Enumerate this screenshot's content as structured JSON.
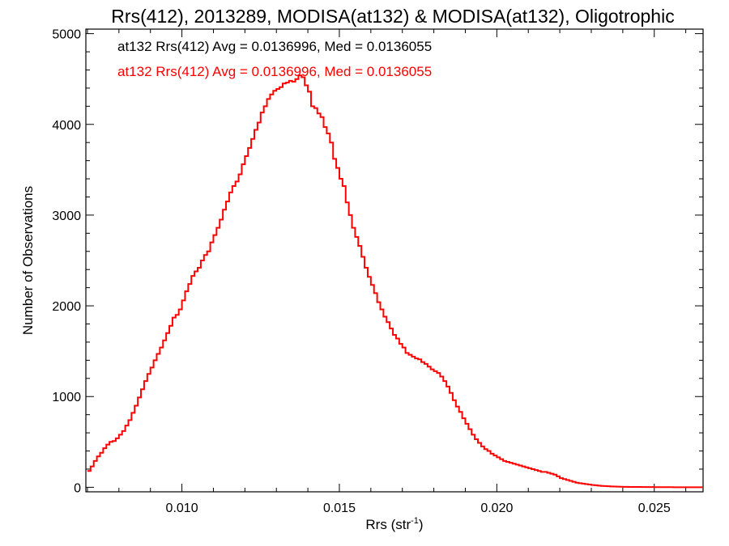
{
  "chart_data": {
    "type": "line",
    "style": "histogram-step",
    "title": "Rrs(412), 2013289, MODISA(at132) & MODISA(at132), Oligotrophic",
    "xlabel_main": "Rrs (str",
    "xlabel_exp": "-1",
    "xlabel_close": ")",
    "ylabel": "Number of Observations",
    "xlim": [
      0.00695,
      0.02655
    ],
    "ylim": [
      -50,
      5050
    ],
    "x_ticks": [
      0.01,
      0.015,
      0.02,
      0.025
    ],
    "x_tick_labels": [
      "0.010",
      "0.015",
      "0.020",
      "0.025"
    ],
    "y_ticks": [
      0,
      1000,
      2000,
      3000,
      4000,
      5000
    ],
    "y_tick_labels": [
      "0",
      "1000",
      "2000",
      "3000",
      "4000",
      "5000"
    ],
    "legend": [
      {
        "text": "at132 Rrs(412) Avg = 0.0136996, Med = 0.0136055",
        "color": "#000000"
      },
      {
        "text": "at132 Rrs(412) Avg = 0.0136996, Med = 0.0136055",
        "color": "#ff0000"
      }
    ],
    "series": [
      {
        "name": "at132",
        "color": "#ff0000",
        "points": [
          [
            0.007,
            180
          ],
          [
            0.0071,
            230
          ],
          [
            0.0072,
            290
          ],
          [
            0.0073,
            340
          ],
          [
            0.0074,
            380
          ],
          [
            0.0075,
            430
          ],
          [
            0.0076,
            470
          ],
          [
            0.0077,
            500
          ],
          [
            0.0078,
            510
          ],
          [
            0.0079,
            540
          ],
          [
            0.008,
            580
          ],
          [
            0.0081,
            620
          ],
          [
            0.0082,
            680
          ],
          [
            0.0083,
            740
          ],
          [
            0.0084,
            820
          ],
          [
            0.0085,
            900
          ],
          [
            0.0086,
            990
          ],
          [
            0.0087,
            1080
          ],
          [
            0.0088,
            1170
          ],
          [
            0.0089,
            1250
          ],
          [
            0.009,
            1320
          ],
          [
            0.0091,
            1400
          ],
          [
            0.0092,
            1470
          ],
          [
            0.0093,
            1540
          ],
          [
            0.0094,
            1620
          ],
          [
            0.0095,
            1700
          ],
          [
            0.0096,
            1780
          ],
          [
            0.0097,
            1870
          ],
          [
            0.0098,
            1900
          ],
          [
            0.0099,
            1960
          ],
          [
            0.01,
            2060
          ],
          [
            0.0101,
            2160
          ],
          [
            0.0102,
            2240
          ],
          [
            0.0103,
            2330
          ],
          [
            0.0104,
            2380
          ],
          [
            0.0105,
            2420
          ],
          [
            0.0106,
            2500
          ],
          [
            0.0107,
            2560
          ],
          [
            0.0108,
            2600
          ],
          [
            0.0109,
            2700
          ],
          [
            0.011,
            2780
          ],
          [
            0.0111,
            2860
          ],
          [
            0.0112,
            2950
          ],
          [
            0.0113,
            3060
          ],
          [
            0.0114,
            3150
          ],
          [
            0.0115,
            3250
          ],
          [
            0.0116,
            3320
          ],
          [
            0.0117,
            3370
          ],
          [
            0.0118,
            3450
          ],
          [
            0.0119,
            3560
          ],
          [
            0.012,
            3650
          ],
          [
            0.0121,
            3740
          ],
          [
            0.0122,
            3840
          ],
          [
            0.0123,
            3940
          ],
          [
            0.0124,
            4020
          ],
          [
            0.0125,
            4130
          ],
          [
            0.0126,
            4200
          ],
          [
            0.0127,
            4280
          ],
          [
            0.0128,
            4330
          ],
          [
            0.0129,
            4370
          ],
          [
            0.013,
            4390
          ],
          [
            0.0131,
            4410
          ],
          [
            0.0132,
            4450
          ],
          [
            0.0133,
            4460
          ],
          [
            0.0134,
            4480
          ],
          [
            0.0135,
            4470
          ],
          [
            0.0136,
            4500
          ],
          [
            0.0137,
            4540
          ],
          [
            0.0138,
            4520
          ],
          [
            0.0139,
            4430
          ],
          [
            0.014,
            4360
          ],
          [
            0.0141,
            4200
          ],
          [
            0.0142,
            4180
          ],
          [
            0.0143,
            4120
          ],
          [
            0.0144,
            4080
          ],
          [
            0.0145,
            3970
          ],
          [
            0.0146,
            3900
          ],
          [
            0.0147,
            3800
          ],
          [
            0.0148,
            3620
          ],
          [
            0.0149,
            3520
          ],
          [
            0.015,
            3400
          ],
          [
            0.0151,
            3320
          ],
          [
            0.0152,
            3140
          ],
          [
            0.0153,
            3000
          ],
          [
            0.0154,
            2860
          ],
          [
            0.0155,
            2760
          ],
          [
            0.0156,
            2660
          ],
          [
            0.0157,
            2540
          ],
          [
            0.0158,
            2420
          ],
          [
            0.0159,
            2320
          ],
          [
            0.016,
            2230
          ],
          [
            0.0161,
            2140
          ],
          [
            0.0162,
            2040
          ],
          [
            0.0163,
            1960
          ],
          [
            0.0164,
            1880
          ],
          [
            0.0165,
            1820
          ],
          [
            0.0166,
            1750
          ],
          [
            0.0167,
            1680
          ],
          [
            0.0168,
            1640
          ],
          [
            0.0169,
            1580
          ],
          [
            0.017,
            1540
          ],
          [
            0.0171,
            1480
          ],
          [
            0.0172,
            1460
          ],
          [
            0.0173,
            1440
          ],
          [
            0.0174,
            1420
          ],
          [
            0.0175,
            1410
          ],
          [
            0.0176,
            1380
          ],
          [
            0.0177,
            1360
          ],
          [
            0.0178,
            1330
          ],
          [
            0.0179,
            1300
          ],
          [
            0.018,
            1280
          ],
          [
            0.0181,
            1260
          ],
          [
            0.0182,
            1220
          ],
          [
            0.0183,
            1170
          ],
          [
            0.0184,
            1110
          ],
          [
            0.0185,
            1040
          ],
          [
            0.0186,
            960
          ],
          [
            0.0187,
            890
          ],
          [
            0.0188,
            830
          ],
          [
            0.0189,
            760
          ],
          [
            0.019,
            700
          ],
          [
            0.0191,
            640
          ],
          [
            0.0192,
            580
          ],
          [
            0.0193,
            530
          ],
          [
            0.0194,
            490
          ],
          [
            0.0195,
            450
          ],
          [
            0.0196,
            420
          ],
          [
            0.0197,
            400
          ],
          [
            0.0198,
            370
          ],
          [
            0.0199,
            350
          ],
          [
            0.02,
            330
          ],
          [
            0.0201,
            310
          ],
          [
            0.0202,
            290
          ],
          [
            0.0203,
            280
          ],
          [
            0.0204,
            270
          ],
          [
            0.0205,
            260
          ],
          [
            0.0206,
            250
          ],
          [
            0.0207,
            240
          ],
          [
            0.0208,
            230
          ],
          [
            0.0209,
            220
          ],
          [
            0.021,
            210
          ],
          [
            0.0211,
            200
          ],
          [
            0.0212,
            190
          ],
          [
            0.0213,
            180
          ],
          [
            0.0214,
            170
          ],
          [
            0.0215,
            170
          ],
          [
            0.0216,
            160
          ],
          [
            0.0217,
            150
          ],
          [
            0.0218,
            140
          ],
          [
            0.0219,
            120
          ],
          [
            0.022,
            100
          ],
          [
            0.0221,
            90
          ],
          [
            0.0222,
            80
          ],
          [
            0.0223,
            70
          ],
          [
            0.0224,
            60
          ],
          [
            0.0225,
            50
          ],
          [
            0.0226,
            45
          ],
          [
            0.0227,
            40
          ],
          [
            0.0228,
            35
          ],
          [
            0.0229,
            30
          ],
          [
            0.023,
            25
          ],
          [
            0.0231,
            22
          ],
          [
            0.0232,
            18
          ],
          [
            0.0233,
            15
          ],
          [
            0.0234,
            13
          ],
          [
            0.0235,
            11
          ],
          [
            0.0236,
            9
          ],
          [
            0.0237,
            8
          ],
          [
            0.0238,
            7
          ],
          [
            0.0239,
            6
          ],
          [
            0.024,
            5
          ],
          [
            0.0242,
            4
          ],
          [
            0.0244,
            3
          ],
          [
            0.0246,
            2
          ],
          [
            0.0248,
            2
          ],
          [
            0.025,
            1
          ],
          [
            0.0252,
            1
          ],
          [
            0.0254,
            1
          ],
          [
            0.0256,
            0
          ],
          [
            0.0258,
            0
          ],
          [
            0.026,
            0
          ],
          [
            0.0262,
            0
          ],
          [
            0.0264,
            0
          ]
        ]
      }
    ]
  }
}
